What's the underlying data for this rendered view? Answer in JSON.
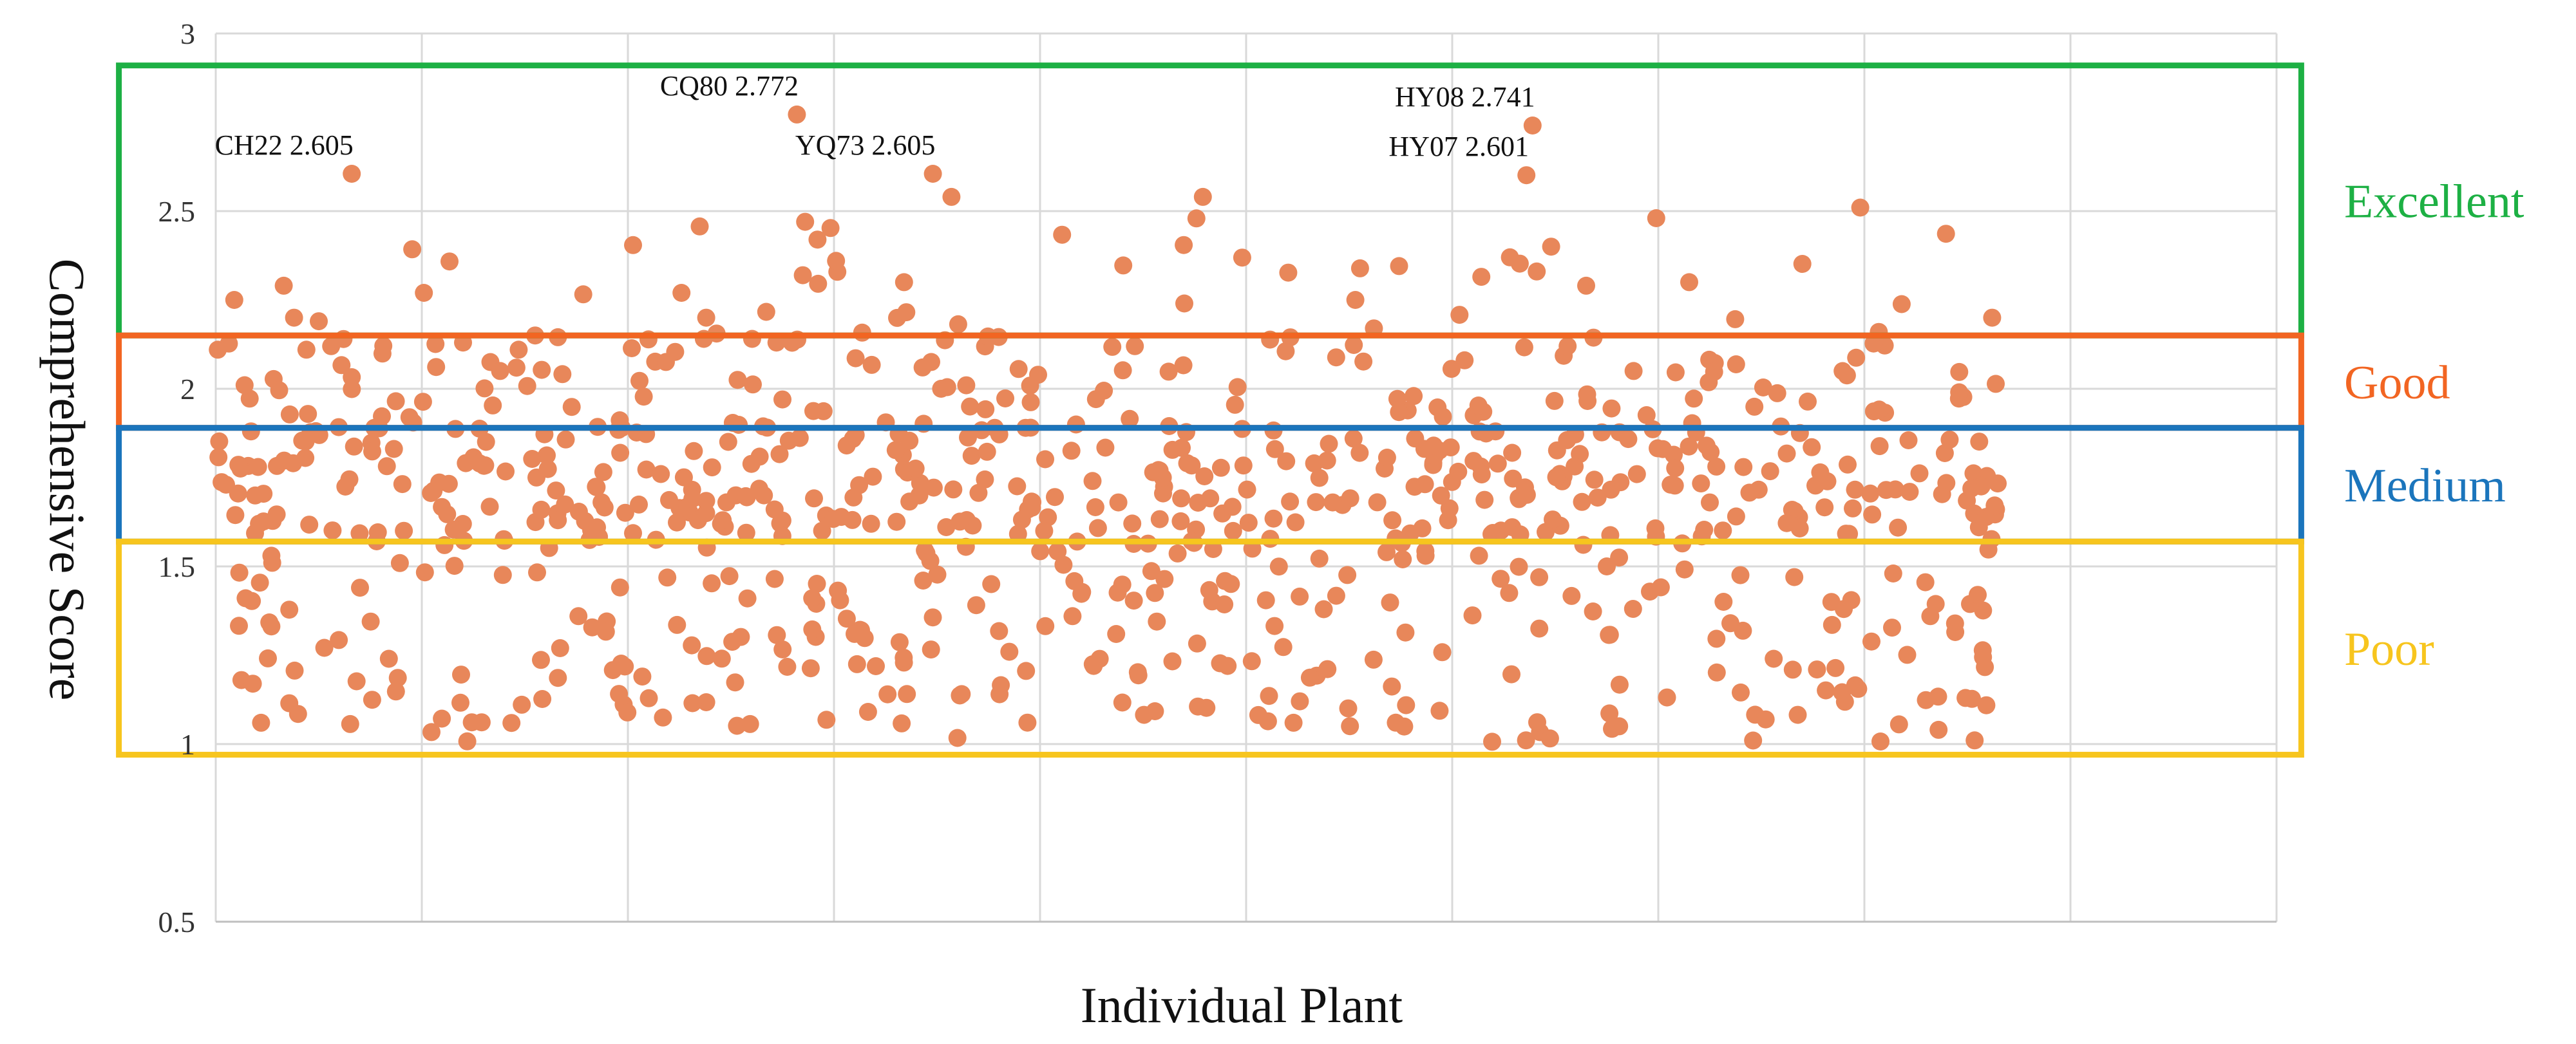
{
  "chart_data": {
    "type": "scatter",
    "title": "",
    "xlabel": "Individual Plant",
    "ylabel": "Comprehensive Score",
    "xlim": [
      0,
      1000
    ],
    "ylim": [
      0.5,
      3.0
    ],
    "yticks": [
      0.5,
      1,
      1.5,
      2,
      2.5,
      3
    ],
    "ytick_labels": [
      "0.5",
      "1",
      "1.5",
      "2",
      "2.5",
      "3"
    ],
    "x_gridlines": [
      100,
      200,
      300,
      400,
      500,
      600,
      700,
      800,
      900,
      1000
    ],
    "grid": true,
    "point_color": "#E8875A",
    "bands": [
      {
        "name": "excellent",
        "label": "Excellent",
        "color": "#1DB044",
        "x_range": [
          -47,
          1012
        ],
        "y_range": [
          2.15,
          2.91
        ]
      },
      {
        "name": "good",
        "label": "Good",
        "color": "#F26522",
        "x_range": [
          -47,
          1012
        ],
        "y_range": [
          1.89,
          2.15
        ]
      },
      {
        "name": "medium",
        "label": "Medium",
        "color": "#1B75BC",
        "x_range": [
          -47,
          1012
        ],
        "y_range": [
          1.57,
          1.89
        ]
      },
      {
        "name": "poor",
        "label": "Poor",
        "color": "#F7C51E",
        "x_range": [
          -47,
          1012
        ],
        "y_range": [
          0.97,
          1.57
        ]
      }
    ],
    "annotations": [
      {
        "id": "ch22",
        "label": "CH22",
        "value": "2.605",
        "x": 66,
        "y": 2.605
      },
      {
        "id": "cq80",
        "label": "CQ80",
        "value": "2.772",
        "x": 282,
        "y": 2.772
      },
      {
        "id": "yq73",
        "label": "YQ73",
        "value": "2.605",
        "x": 348,
        "y": 2.605
      },
      {
        "id": "hy08",
        "label": "HY08",
        "value": "2.741",
        "x": 639,
        "y": 2.741
      },
      {
        "id": "hy07",
        "label": "HY07",
        "value": "2.601",
        "x": 636,
        "y": 2.601
      }
    ],
    "series": [
      {
        "name": "Individual plants",
        "n": 850,
        "sample_points": [
          [
            1,
            2.11
          ],
          [
            5,
            1.73
          ],
          [
            9,
            2.25
          ],
          [
            14,
            2.01
          ],
          [
            18,
            1.17
          ],
          [
            22,
            1.06
          ],
          [
            27,
            1.53
          ],
          [
            33,
            2.29
          ],
          [
            38,
            2.2
          ],
          [
            44,
            2.11
          ],
          [
            50,
            2.19
          ],
          [
            56,
            2.12
          ],
          [
            62,
            2.14
          ],
          [
            70,
            1.44
          ],
          [
            77,
            1.89
          ],
          [
            84,
            1.24
          ],
          [
            94,
            1.92
          ],
          [
            101,
            2.27
          ],
          [
            111,
            1.56
          ],
          [
            120,
            2.13
          ],
          [
            128,
            1.79
          ],
          [
            138,
            2.05
          ],
          [
            147,
            2.11
          ],
          [
            155,
            2.15
          ],
          [
            166,
            1.63
          ],
          [
            176,
            1.36
          ],
          [
            185,
            1.61
          ],
          [
            197,
            1.89
          ],
          [
            207,
            1.19
          ],
          [
            216,
            1.76
          ],
          [
            226,
            2.27
          ],
          [
            238,
            2.2
          ],
          [
            246,
            1.63
          ],
          [
            258,
            1.41
          ],
          [
            266,
            1.7
          ],
          [
            275,
            1.97
          ],
          [
            286,
            2.47
          ],
          [
            292,
            2.42
          ],
          [
            301,
            2.36
          ],
          [
            310,
            1.31
          ],
          [
            318,
            1.62
          ],
          [
            326,
            1.14
          ],
          [
            334,
            2.3
          ],
          [
            343,
            2.06
          ],
          [
            352,
            2.0
          ],
          [
            357,
            2.54
          ],
          [
            366,
            1.95
          ],
          [
            378,
            1.89
          ],
          [
            393,
            1.89
          ],
          [
            402,
            1.6
          ],
          [
            418,
            1.57
          ],
          [
            426,
            1.22
          ],
          [
            438,
            1.68
          ],
          [
            446,
            2.12
          ],
          [
            458,
            1.77
          ],
          [
            470,
            2.24
          ],
          [
            479,
            2.54
          ],
          [
            491,
            1.22
          ],
          [
            503,
            1.55
          ],
          [
            514,
            1.83
          ],
          [
            523,
            1.06
          ],
          [
            533,
            1.79
          ],
          [
            542,
            1.68
          ],
          [
            553,
            2.25
          ],
          [
            562,
            2.17
          ],
          [
            576,
            1.52
          ],
          [
            582,
            1.86
          ],
          [
            591,
            1.84
          ],
          [
            598,
            1.63
          ],
          [
            606,
            2.08
          ],
          [
            613,
            1.53
          ],
          [
            621,
            1.88
          ],
          [
            628,
            2.37
          ],
          [
            633,
            1.59
          ],
          [
            641,
            2.33
          ],
          [
            648,
            2.4
          ],
          [
            656,
            2.12
          ],
          [
            665,
            2.29
          ],
          [
            675,
            1.5
          ],
          [
            681,
            1.05
          ],
          [
            688,
            2.05
          ],
          [
            699,
            2.48
          ],
          [
            706,
            1.73
          ],
          [
            715,
            2.3
          ],
          [
            725,
            1.68
          ],
          [
            735,
            1.34
          ],
          [
            746,
            1.01
          ],
          [
            756,
            1.24
          ],
          [
            766,
            1.47
          ],
          [
            777,
            1.21
          ],
          [
            784,
            1.4
          ],
          [
            790,
            1.38
          ],
          [
            798,
            2.51
          ],
          [
            807,
            2.16
          ],
          [
            814,
            1.48
          ],
          [
            822,
            1.71
          ],
          [
            832,
            1.36
          ],
          [
            836,
            1.04
          ],
          [
            846,
            1.99
          ],
          [
            855,
            1.42
          ],
          [
            862,
            2.2
          ]
        ]
      }
    ]
  }
}
